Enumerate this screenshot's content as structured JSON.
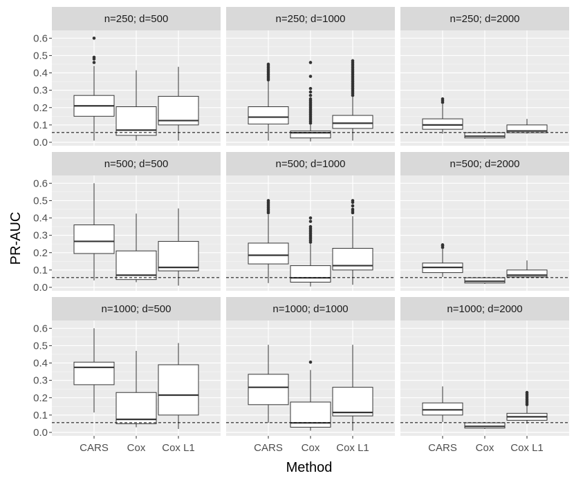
{
  "chart_data": {
    "type": "boxplot",
    "xlabel": "Method",
    "ylabel": "PR-AUC",
    "ylim": [
      -0.02,
      0.645
    ],
    "yticks": [
      0.0,
      0.1,
      0.2,
      0.3,
      0.4,
      0.5,
      0.6
    ],
    "ytick_labels": [
      "0.0",
      "0.1",
      "0.2",
      "0.3",
      "0.4",
      "0.5",
      "0.6"
    ],
    "categories": [
      "CARS",
      "Cox",
      "Cox L1"
    ],
    "reference_line": {
      "value": 0.056,
      "style": "dashed"
    },
    "colors": {
      "panel_bg": "#ebebeb",
      "strip_bg": "#d9d9d9",
      "grid": "#ffffff",
      "box_fill": "#ffffff",
      "box_line": "#333333",
      "outlier": "#333333"
    },
    "panels": [
      {
        "title": "n=250; d=500",
        "boxes": [
          {
            "method": "CARS",
            "lower": 0.01,
            "q1": 0.15,
            "median": 0.21,
            "q3": 0.27,
            "upper": 0.44,
            "outliers": [
              0.46,
              0.48,
              0.49,
              0.6
            ]
          },
          {
            "method": "Cox",
            "lower": 0.01,
            "q1": 0.04,
            "median": 0.07,
            "q3": 0.205,
            "upper": 0.415,
            "outliers": []
          },
          {
            "method": "Cox L1",
            "lower": 0.01,
            "q1": 0.1,
            "median": 0.125,
            "q3": 0.265,
            "upper": 0.435,
            "outliers": []
          }
        ]
      },
      {
        "title": "n=250; d=1000",
        "boxes": [
          {
            "method": "CARS",
            "lower": 0.01,
            "q1": 0.105,
            "median": 0.145,
            "q3": 0.205,
            "upper": 0.355,
            "outliers": [
              0.36,
              0.37,
              0.38,
              0.39,
              0.4,
              0.41,
              0.42,
              0.43,
              0.44,
              0.45
            ]
          },
          {
            "method": "Cox",
            "lower": 0.005,
            "q1": 0.025,
            "median": 0.055,
            "q3": 0.065,
            "upper": 0.1,
            "outliers": [
              0.11,
              0.12,
              0.13,
              0.14,
              0.15,
              0.16,
              0.17,
              0.18,
              0.19,
              0.2,
              0.21,
              0.22,
              0.23,
              0.24,
              0.25,
              0.27,
              0.29,
              0.31,
              0.38,
              0.46
            ]
          },
          {
            "method": "Cox L1",
            "lower": 0.01,
            "q1": 0.08,
            "median": 0.11,
            "q3": 0.155,
            "upper": 0.26,
            "outliers": [
              0.27,
              0.28,
              0.29,
              0.3,
              0.31,
              0.32,
              0.33,
              0.34,
              0.35,
              0.36,
              0.37,
              0.38,
              0.39,
              0.4,
              0.41,
              0.42,
              0.43,
              0.44,
              0.45,
              0.46,
              0.47
            ]
          }
        ]
      },
      {
        "title": "n=250; d=2000",
        "boxes": [
          {
            "method": "CARS",
            "lower": 0.05,
            "q1": 0.075,
            "median": 0.1,
            "q3": 0.135,
            "upper": 0.22,
            "outliers": [
              0.23,
              0.24,
              0.25
            ]
          },
          {
            "method": "Cox",
            "lower": 0.02,
            "q1": 0.025,
            "median": 0.035,
            "q3": 0.055,
            "upper": 0.065,
            "outliers": []
          },
          {
            "method": "Cox L1",
            "lower": 0.05,
            "q1": 0.055,
            "median": 0.065,
            "q3": 0.1,
            "upper": 0.135,
            "outliers": []
          }
        ]
      },
      {
        "title": "n=500; d=500",
        "boxes": [
          {
            "method": "CARS",
            "lower": 0.04,
            "q1": 0.195,
            "median": 0.265,
            "q3": 0.36,
            "upper": 0.6,
            "outliers": []
          },
          {
            "method": "Cox",
            "lower": 0.03,
            "q1": 0.045,
            "median": 0.07,
            "q3": 0.21,
            "upper": 0.425,
            "outliers": []
          },
          {
            "method": "Cox L1",
            "lower": 0.01,
            "q1": 0.095,
            "median": 0.115,
            "q3": 0.265,
            "upper": 0.455,
            "outliers": []
          }
        ]
      },
      {
        "title": "n=500; d=1000",
        "boxes": [
          {
            "method": "CARS",
            "lower": 0.025,
            "q1": 0.135,
            "median": 0.185,
            "q3": 0.255,
            "upper": 0.42,
            "outliers": [
              0.43,
              0.44,
              0.45,
              0.46,
              0.47,
              0.48,
              0.49,
              0.5
            ]
          },
          {
            "method": "Cox",
            "lower": 0.005,
            "q1": 0.03,
            "median": 0.055,
            "q3": 0.125,
            "upper": 0.25,
            "outliers": [
              0.26,
              0.27,
              0.28,
              0.29,
              0.3,
              0.31,
              0.32,
              0.33,
              0.34,
              0.35,
              0.38,
              0.4
            ]
          },
          {
            "method": "Cox L1",
            "lower": 0.015,
            "q1": 0.1,
            "median": 0.125,
            "q3": 0.225,
            "upper": 0.41,
            "outliers": [
              0.43,
              0.44,
              0.45,
              0.47,
              0.49,
              0.5
            ]
          }
        ]
      },
      {
        "title": "n=500; d=2000",
        "boxes": [
          {
            "method": "CARS",
            "lower": 0.06,
            "q1": 0.085,
            "median": 0.115,
            "q3": 0.14,
            "upper": 0.22,
            "outliers": [
              0.23,
              0.24,
              0.245
            ]
          },
          {
            "method": "Cox",
            "lower": 0.02,
            "q1": 0.025,
            "median": 0.035,
            "q3": 0.055,
            "upper": 0.06,
            "outliers": []
          },
          {
            "method": "Cox L1",
            "lower": 0.055,
            "q1": 0.06,
            "median": 0.07,
            "q3": 0.1,
            "upper": 0.155,
            "outliers": []
          }
        ]
      },
      {
        "title": "n=1000; d=500",
        "boxes": [
          {
            "method": "CARS",
            "lower": 0.115,
            "q1": 0.275,
            "median": 0.375,
            "q3": 0.405,
            "upper": 0.6,
            "outliers": []
          },
          {
            "method": "Cox",
            "lower": 0.03,
            "q1": 0.05,
            "median": 0.075,
            "q3": 0.23,
            "upper": 0.47,
            "outliers": []
          },
          {
            "method": "Cox L1",
            "lower": 0.02,
            "q1": 0.1,
            "median": 0.215,
            "q3": 0.39,
            "upper": 0.515,
            "outliers": []
          }
        ]
      },
      {
        "title": "n=1000; d=1000",
        "boxes": [
          {
            "method": "CARS",
            "lower": 0.055,
            "q1": 0.16,
            "median": 0.26,
            "q3": 0.335,
            "upper": 0.505,
            "outliers": []
          },
          {
            "method": "Cox",
            "lower": 0.01,
            "q1": 0.03,
            "median": 0.055,
            "q3": 0.175,
            "upper": 0.36,
            "outliers": [
              0.405
            ]
          },
          {
            "method": "Cox L1",
            "lower": 0.01,
            "q1": 0.095,
            "median": 0.115,
            "q3": 0.26,
            "upper": 0.505,
            "outliers": []
          }
        ]
      },
      {
        "title": "n=1000; d=2000",
        "boxes": [
          {
            "method": "CARS",
            "lower": 0.06,
            "q1": 0.1,
            "median": 0.13,
            "q3": 0.17,
            "upper": 0.265,
            "outliers": []
          },
          {
            "method": "Cox",
            "lower": 0.02,
            "q1": 0.025,
            "median": 0.035,
            "q3": 0.055,
            "upper": 0.06,
            "outliers": []
          },
          {
            "method": "Cox L1",
            "lower": 0.05,
            "q1": 0.07,
            "median": 0.09,
            "q3": 0.11,
            "upper": 0.155,
            "outliers": [
              0.16,
              0.17,
              0.18,
              0.19,
              0.2,
              0.21,
              0.22,
              0.23
            ]
          }
        ]
      }
    ]
  }
}
